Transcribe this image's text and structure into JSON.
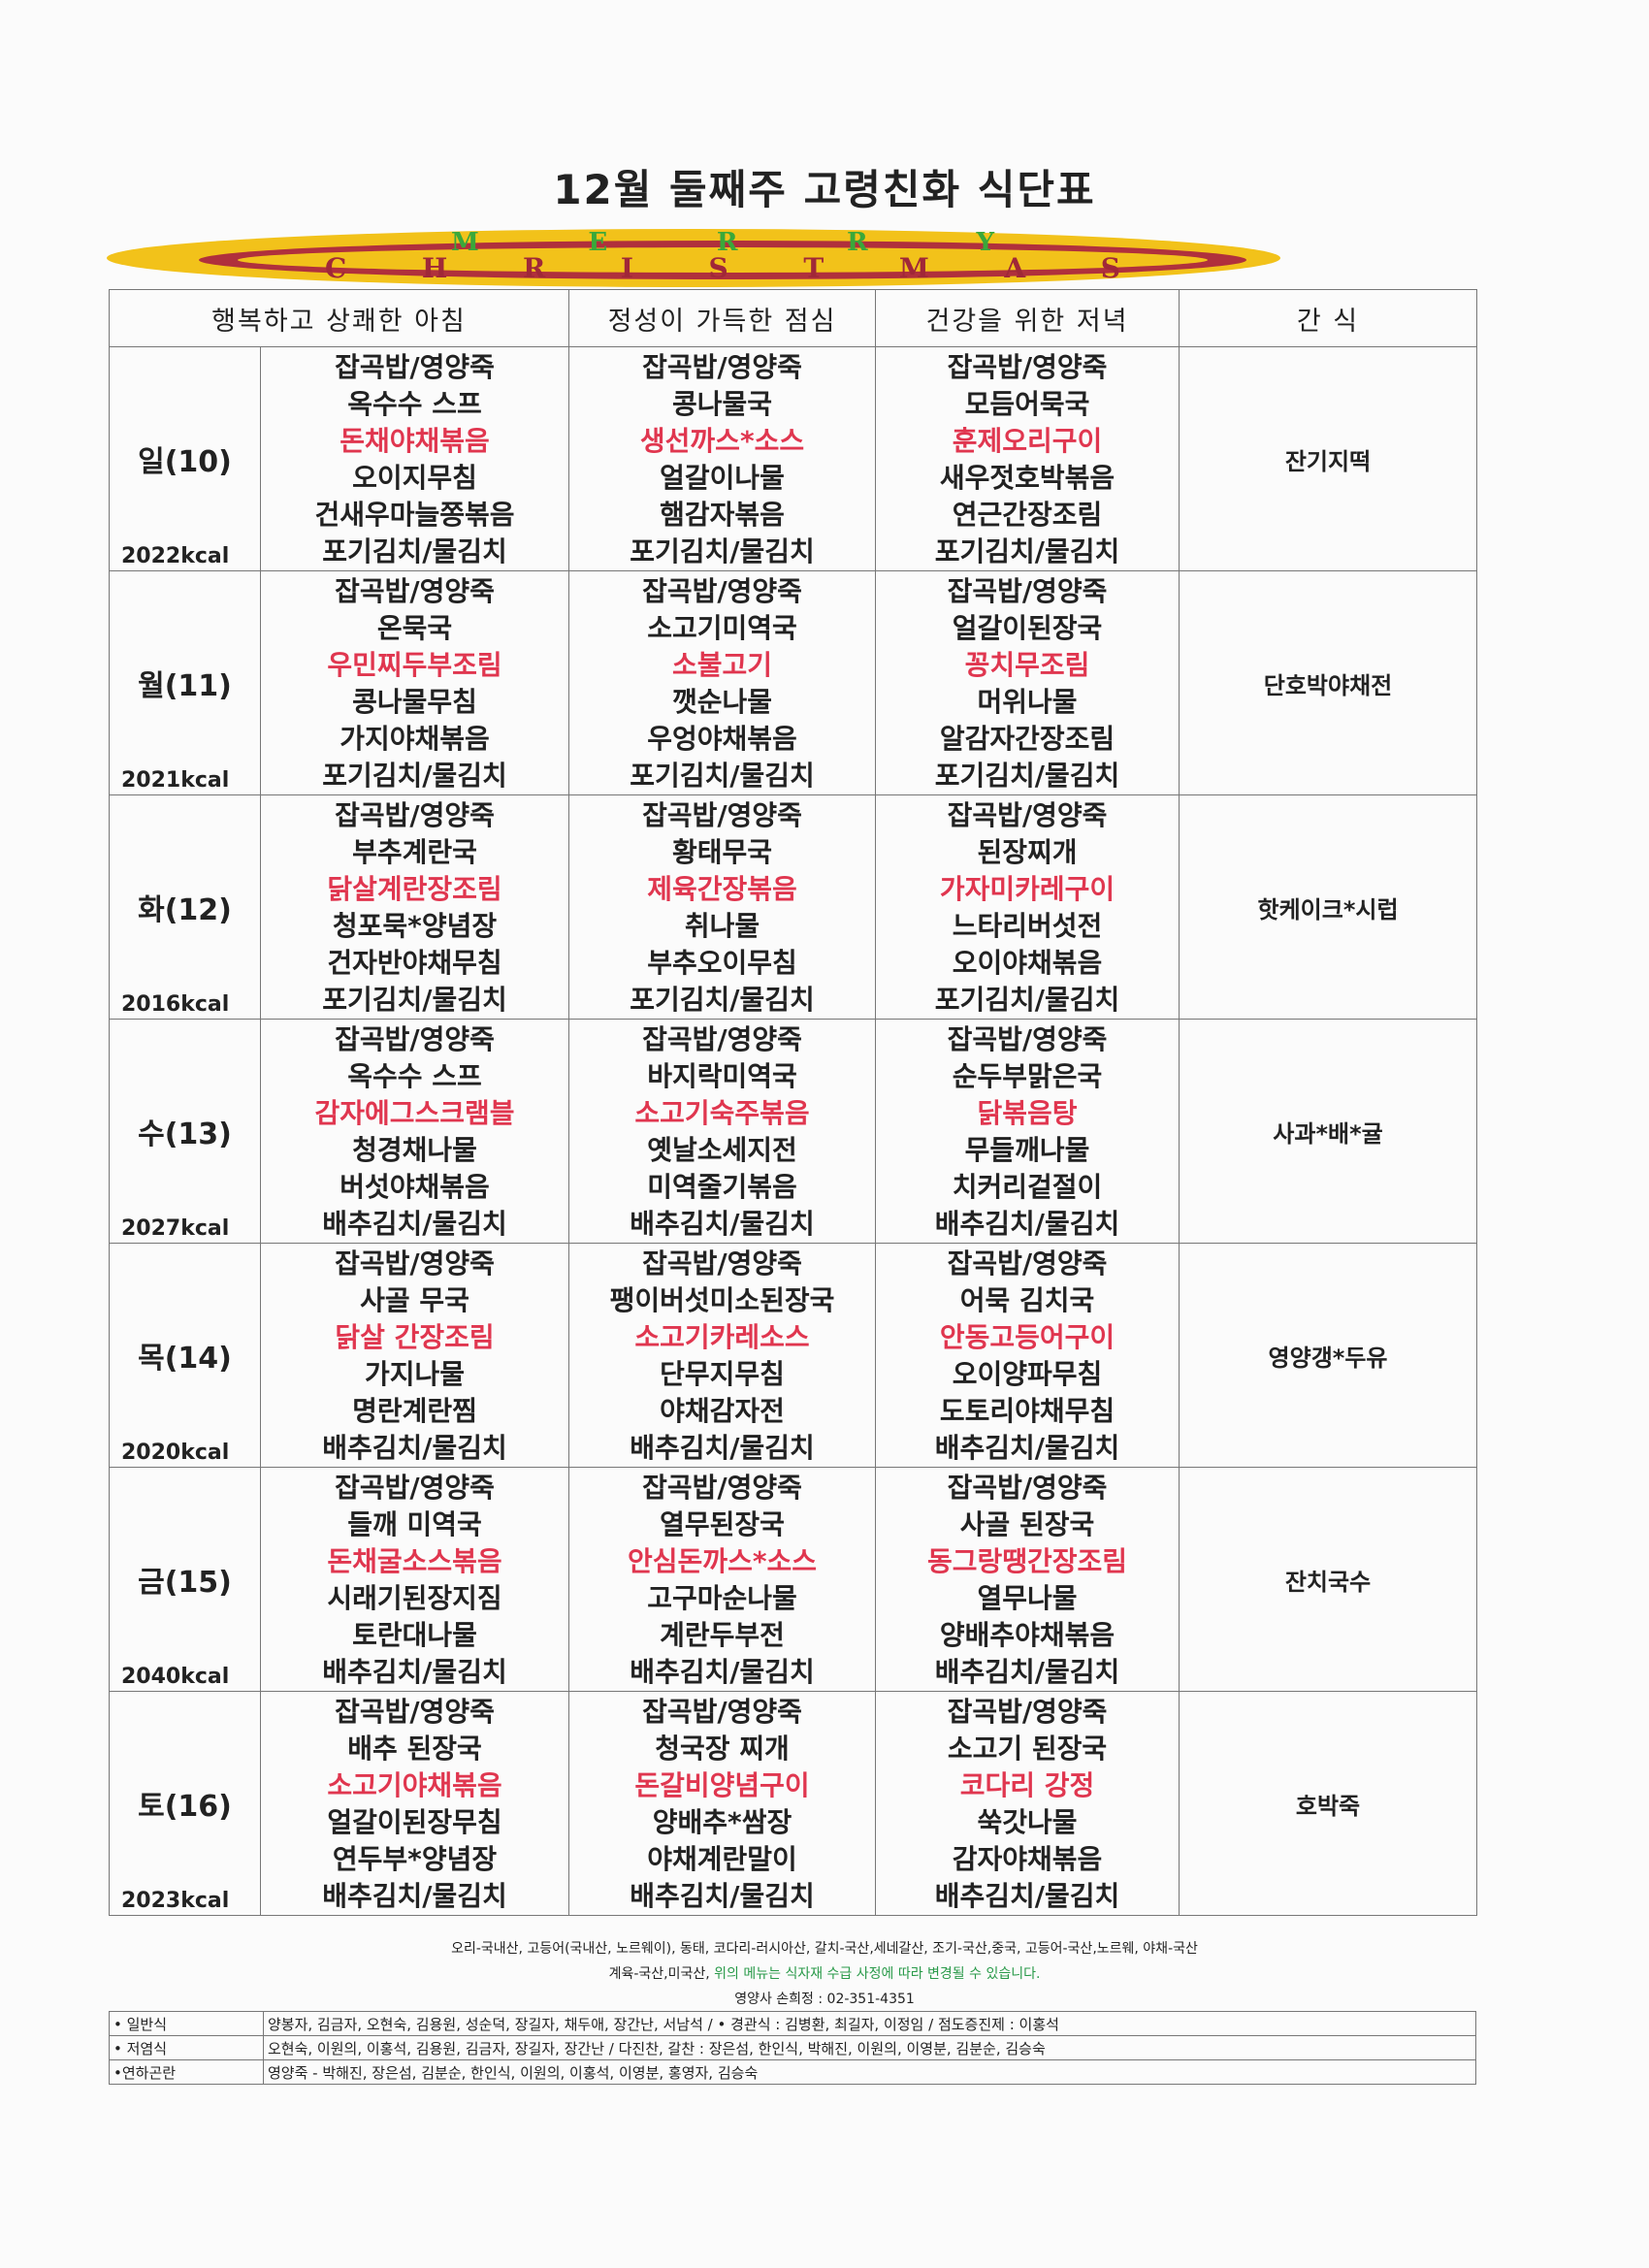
{
  "title": "12월 둘째주   고령친화 식단표",
  "banner": {
    "logo_text": "MERRY CHRISTMAS",
    "colors": {
      "yellow": "#f2c21a",
      "red": "#b0303c",
      "green": "#3aa83a"
    }
  },
  "header": [
    "행복하고 상쾌한 아침",
    "정성이 가득한 점심",
    "건강을 위한 저녁",
    "간 식"
  ],
  "accent_color": "#e0364f",
  "days": [
    {
      "day": "일(10)",
      "kcal": "2022kcal",
      "breakfast": [
        "잡곡밥/영양죽",
        "옥수수 스프",
        "돈채야채볶음",
        "오이지무침",
        "건새우마늘쫑볶음",
        "포기김치/물김치"
      ],
      "lunch": [
        "잡곡밥/영양죽",
        "콩나물국",
        "생선까스*소스",
        "얼갈이나물",
        "햄감자볶음",
        "포기김치/물김치"
      ],
      "dinner": [
        "잡곡밥/영양죽",
        "모듬어묵국",
        "훈제오리구이",
        "새우젓호박볶음",
        "연근간장조림",
        "포기김치/물김치"
      ],
      "snack": "잔기지떡"
    },
    {
      "day": "월(11)",
      "kcal": "2021kcal",
      "breakfast": [
        "잡곡밥/영양죽",
        "온묵국",
        "우민찌두부조림",
        "콩나물무침",
        "가지야채볶음",
        "포기김치/물김치"
      ],
      "lunch": [
        "잡곡밥/영양죽",
        "소고기미역국",
        "소불고기",
        "깻순나물",
        "우엉야채볶음",
        "포기김치/물김치"
      ],
      "dinner": [
        "잡곡밥/영양죽",
        "얼갈이된장국",
        "꽁치무조림",
        "머위나물",
        "알감자간장조림",
        "포기김치/물김치"
      ],
      "snack": "단호박야채전"
    },
    {
      "day": "화(12)",
      "kcal": "2016kcal",
      "breakfast": [
        "잡곡밥/영양죽",
        "부추계란국",
        "닭살계란장조림",
        "청포묵*양념장",
        "건자반야채무침",
        "포기김치/물김치"
      ],
      "lunch": [
        "잡곡밥/영양죽",
        "황태무국",
        "제육간장볶음",
        "취나물",
        "부추오이무침",
        "포기김치/물김치"
      ],
      "dinner": [
        "잡곡밥/영양죽",
        "된장찌개",
        "가자미카레구이",
        "느타리버섯전",
        "오이야채볶음",
        "포기김치/물김치"
      ],
      "snack": "핫케이크*시럽"
    },
    {
      "day": "수(13)",
      "kcal": "2027kcal",
      "breakfast": [
        "잡곡밥/영양죽",
        "옥수수 스프",
        "감자에그스크램블",
        "청경채나물",
        "버섯야채볶음",
        "배추김치/물김치"
      ],
      "lunch": [
        "잡곡밥/영양죽",
        "바지락미역국",
        "소고기숙주볶음",
        "옛날소세지전",
        "미역줄기볶음",
        "배추김치/물김치"
      ],
      "dinner": [
        "잡곡밥/영양죽",
        "순두부맑은국",
        "닭볶음탕",
        "무들깨나물",
        "치커리겉절이",
        "배추김치/물김치"
      ],
      "snack": "사과*배*귤"
    },
    {
      "day": "목(14)",
      "kcal": "2020kcal",
      "breakfast": [
        "잡곡밥/영양죽",
        "사골 무국",
        "닭살 간장조림",
        "가지나물",
        "명란계란찜",
        "배추김치/물김치"
      ],
      "lunch": [
        "잡곡밥/영양죽",
        "팽이버섯미소된장국",
        "소고기카레소스",
        "단무지무침",
        "야채감자전",
        "배추김치/물김치"
      ],
      "dinner": [
        "잡곡밥/영양죽",
        "어묵 김치국",
        "안동고등어구이",
        "오이양파무침",
        "도토리야채무침",
        "배추김치/물김치"
      ],
      "snack": "영양갱*두유"
    },
    {
      "day": "금(15)",
      "kcal": "2040kcal",
      "breakfast": [
        "잡곡밥/영양죽",
        "들깨 미역국",
        "돈채굴소스볶음",
        "시래기된장지짐",
        "토란대나물",
        "배추김치/물김치"
      ],
      "lunch": [
        "잡곡밥/영양죽",
        "열무된장국",
        "안심돈까스*소스",
        "고구마순나물",
        "계란두부전",
        "배추김치/물김치"
      ],
      "dinner": [
        "잡곡밥/영양죽",
        "사골 된장국",
        "동그랑땡간장조림",
        "열무나물",
        "양배추야채볶음",
        "배추김치/물김치"
      ],
      "snack": "잔치국수"
    },
    {
      "day": "토(16)",
      "kcal": "2023kcal",
      "breakfast": [
        "잡곡밥/영양죽",
        "배추 된장국",
        "소고기야채볶음",
        "얼갈이된장무침",
        "연두부*양념장",
        "배추김치/물김치"
      ],
      "lunch": [
        "잡곡밥/영양죽",
        "청국장 찌개",
        "돈갈비양념구이",
        "양배추*쌈장",
        "야채계란말이",
        "배추김치/물김치"
      ],
      "dinner": [
        "잡곡밥/영양죽",
        "소고기 된장국",
        "코다리 강정",
        "쑥갓나물",
        "감자야채볶음",
        "배추김치/물김치"
      ],
      "snack": "호박죽"
    }
  ],
  "footer": {
    "origin_line1": "오리-국내산, 고등어(국내산, 노르웨이), 동태, 코다리-러시아산, 갈치-국산,세네갈산, 조기-국산,중국, 고등어-국산,노르웨, 야채-국산",
    "origin_line2": "계육-국산,미국산,",
    "notice": " 위의 메뉴는 식자재 수급 사정에 따라 변경될 수 있습니다.",
    "contact": "영양사 손희정 : 02-351-4351"
  },
  "staff": [
    {
      "label": "• 일반식",
      "names": "양봉자, 김금자, 오현숙, 김용원, 성순덕, 장길자, 채두애, 장간난, 서남석 /  • 경관식 : 김병환, 최길자, 이정임  / 점도증진제 : 이홍석"
    },
    {
      "label": "• 저염식",
      "names": "오현숙, 이원의, 이홍석, 김용원, 김금자, 장길자, 장간난  / 다진찬, 갈찬 : 장은섬, 한인식, 박해진, 이원의, 이영분, 김분순, 김승숙"
    },
    {
      "label": "•연하곤란",
      "names": "영양죽 - 박해진,  장은섬, 김분순,  한인식, 이원의, 이홍석, 이영분, 홍영자, 김승숙"
    }
  ]
}
